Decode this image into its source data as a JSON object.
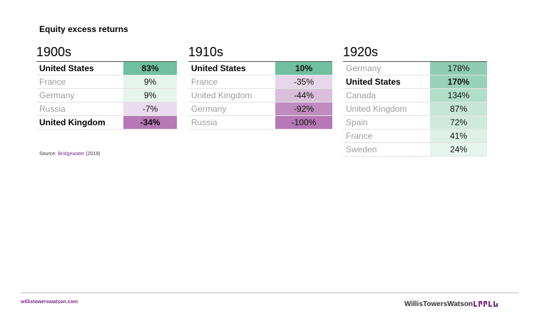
{
  "title": "Equity excess returns",
  "source": {
    "prefix": "Source: ",
    "link": "Bridgewater",
    "suffix": " (2019)"
  },
  "footer": {
    "url": "willistowerswatson.com",
    "brand": "WillisTowersWatson"
  },
  "tables": [
    {
      "decade": "1900s",
      "rows": [
        {
          "country": "United States",
          "value": "83%",
          "highlight": true,
          "color": "#6fbfa0"
        },
        {
          "country": "France",
          "value": "9%",
          "highlight": false,
          "color": "#e6f4ee"
        },
        {
          "country": "Germany",
          "value": "9%",
          "highlight": false,
          "color": "#e6f4ee"
        },
        {
          "country": "Russia",
          "value": "-7%",
          "highlight": false,
          "color": "#eadbee"
        },
        {
          "country": "United Kingdom",
          "value": "-34%",
          "highlight": true,
          "color": "#b778b5"
        }
      ]
    },
    {
      "decade": "1910s",
      "rows": [
        {
          "country": "United States",
          "value": "10%",
          "highlight": true,
          "color": "#6fbfa0"
        },
        {
          "country": "France",
          "value": "-35%",
          "highlight": false,
          "color": "#e8d6ea"
        },
        {
          "country": "United Kingdom",
          "value": "-44%",
          "highlight": false,
          "color": "#d9bfdc"
        },
        {
          "country": "Germany",
          "value": "-92%",
          "highlight": false,
          "color": "#c08cc0"
        },
        {
          "country": "Russia",
          "value": "-100%",
          "highlight": false,
          "color": "#b778b5"
        }
      ]
    },
    {
      "decade": "1920s",
      "rows": [
        {
          "country": "Germany",
          "value": "178%",
          "highlight": false,
          "color": "#8ecdb3"
        },
        {
          "country": "United States",
          "value": "170%",
          "highlight": true,
          "color": "#98d2ba"
        },
        {
          "country": "Canada",
          "value": "134%",
          "highlight": false,
          "color": "#b2dec9"
        },
        {
          "country": "United Kingdom",
          "value": "87%",
          "highlight": false,
          "color": "#c6e6d7"
        },
        {
          "country": "Spain",
          "value": "72%",
          "highlight": false,
          "color": "#cfeadd"
        },
        {
          "country": "France",
          "value": "41%",
          "highlight": false,
          "color": "#dcf0e6"
        },
        {
          "country": "Sweden",
          "value": "24%",
          "highlight": false,
          "color": "#e6f4ee"
        }
      ]
    }
  ]
}
